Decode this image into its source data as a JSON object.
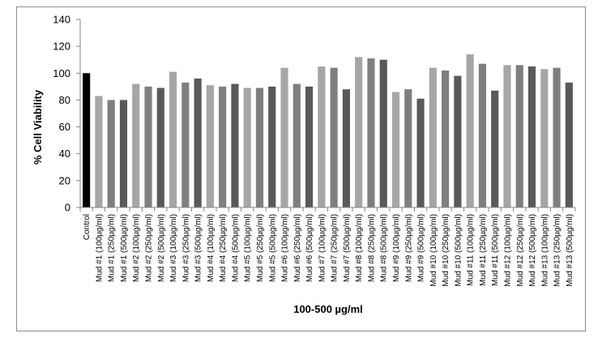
{
  "chart_data": {
    "type": "bar",
    "title": "",
    "xlabel": "100-500 µg/ml",
    "ylabel": "% Cell Viability",
    "ylim": [
      0,
      140
    ],
    "yticks": [
      0,
      20,
      40,
      60,
      80,
      100,
      120,
      140
    ],
    "grid": false,
    "legend": "none",
    "categories": [
      "Control",
      "Mud #1 (100µg/ml)",
      "Mud #1 (250µg/ml)",
      "Mud #1 (500µg/ml)",
      "Mud #2 (100µg/ml)",
      "Mud #2 (250µg/ml)",
      "Mud #2 (500µg/ml)",
      "Mud #3 (100µg/ml)",
      "Mud #3 (250µg/ml)",
      "Mud #3 (500µg/ml)",
      "Mud #4 (100µg/ml)",
      "Mud #4 (250µg/ml)",
      "Mud #4 (500µg/ml)",
      "Mud #5 (100µg/ml)",
      "Mud #5 (250µg/ml)",
      "Mud #5 (500µg/ml)",
      "Mud #6 (100µg/ml)",
      "Mud #6 (250µg/ml)",
      "Mud #6 (500µg/ml)",
      "Mud #7 (100µg/ml)",
      "Mud #7 (250µg/ml)",
      "Mud #7 (500µg/ml)",
      "Mud #8 (100µg/ml)",
      "Mud #8 (250µg/ml)",
      "Mud #8 (500µg/ml)",
      "Mud #9 (100µg/ml)",
      "Mud #9 (250µg/ml)",
      "Mud #9 (500µg/ml)",
      "Mud #10 (100µg/ml)",
      "Mud #10 (250µg/ml)",
      "Mud #10 (500µg/ml)",
      "Mud #11 (100µg/ml)",
      "Mud #11 (250µg/ml)",
      "Mud #11 (500µg/ml)",
      "Mud #12 (100µg/ml)",
      "Mud #12 (250µg/ml)",
      "Mud #12 (500µg/ml)",
      "Mud #13 (100µg/ml)",
      "Mud #13 (250µg/ml)",
      "Mud #13 (500µg/ml)"
    ],
    "values": [
      100,
      83,
      80,
      80,
      92,
      90,
      89,
      101,
      93,
      96,
      91,
      90,
      92,
      89,
      89,
      90,
      104,
      92,
      90,
      105,
      104,
      88,
      112,
      111,
      110,
      86,
      88,
      81,
      104,
      102,
      98,
      114,
      107,
      87,
      106,
      106,
      105,
      103,
      104,
      93
    ],
    "colors": {
      "control": "#000000",
      "dose_100": "#a6a6a6",
      "dose_250": "#7f7f7f",
      "dose_500": "#595959"
    }
  }
}
